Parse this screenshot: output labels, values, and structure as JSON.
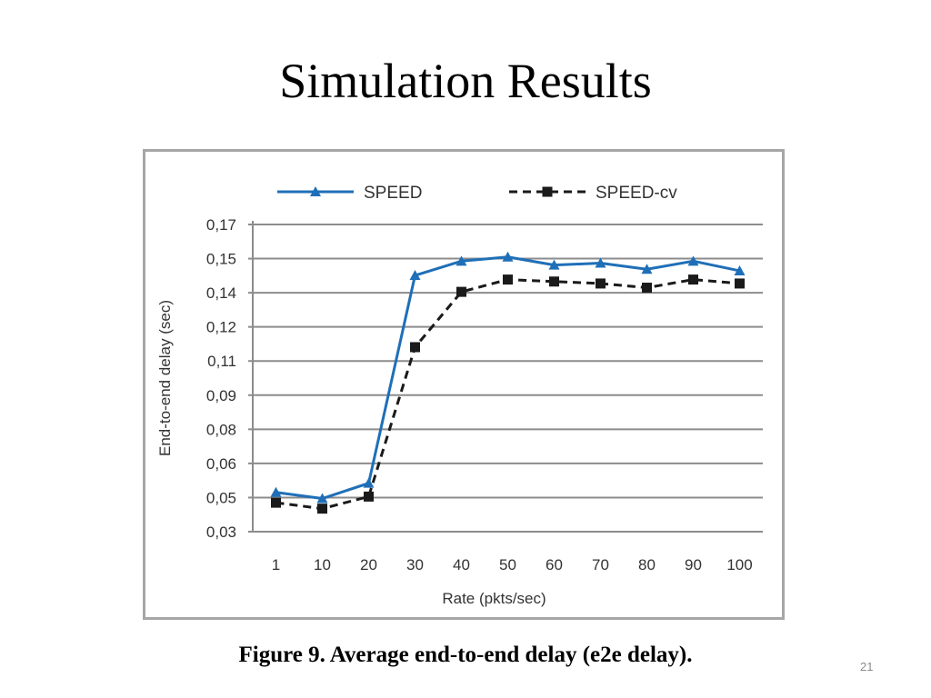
{
  "slide": {
    "title": "Simulation Results",
    "caption": "Figure 9. Average end-to-end delay (e2e delay).",
    "slide_number": "21"
  },
  "chart_data": {
    "type": "line",
    "categories": [
      "1",
      "10",
      "20",
      "30",
      "40",
      "50",
      "60",
      "70",
      "80",
      "90",
      "100"
    ],
    "xlabel": "Rate (pkts/sec)",
    "ylabel": "End-to-end delay (sec)",
    "y_tick_labels": [
      "0,03",
      "0,05",
      "0,06",
      "0,08",
      "0,09",
      "0,11",
      "0,12",
      "0,14",
      "0,15",
      "0,17"
    ],
    "ylim": [
      0.03,
      0.17
    ],
    "grid": true,
    "legend_position": "top",
    "series": [
      {
        "name": "SPEED",
        "color": "#1f6fb8",
        "line_style": "solid",
        "marker": "triangle",
        "values": [
          0.0479,
          0.0451,
          0.0521,
          0.1468,
          0.1533,
          0.1552,
          0.1515,
          0.1524,
          0.1496,
          0.1533,
          0.1489
        ]
      },
      {
        "name": "SPEED-cv",
        "color": "#1a1a1a",
        "line_style": "dashed",
        "marker": "square",
        "values": [
          0.0432,
          0.0405,
          0.046,
          0.1141,
          0.1393,
          0.1449,
          0.144,
          0.1431,
          0.1412,
          0.1449,
          0.1431
        ]
      }
    ]
  }
}
